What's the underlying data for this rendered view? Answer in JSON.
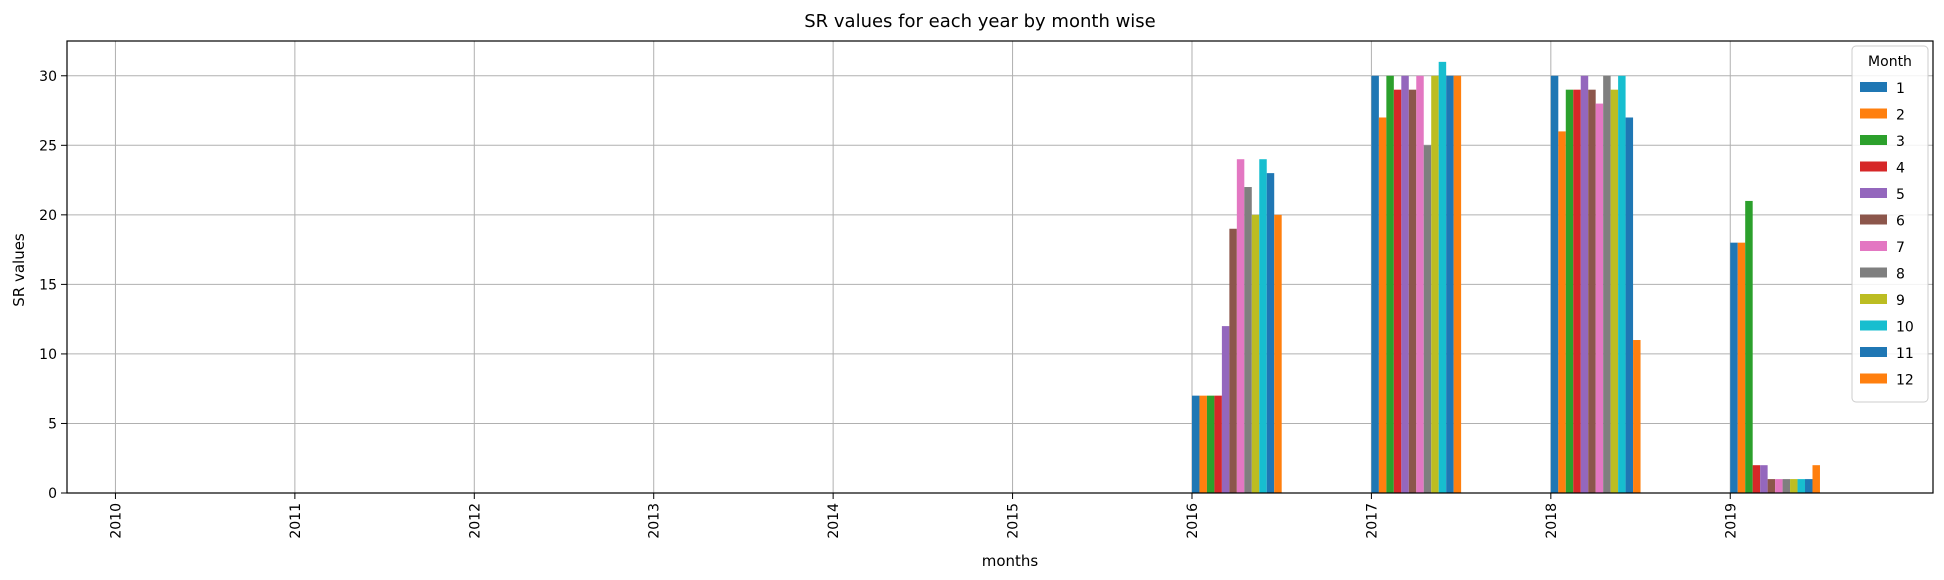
{
  "chart_data": {
    "type": "bar",
    "title": "SR values for each year by month wise",
    "xlabel": "months",
    "ylabel": "SR values",
    "categories": [
      "2010",
      "2011",
      "2012",
      "2013",
      "2014",
      "2015",
      "2016",
      "2017",
      "2018",
      "2019"
    ],
    "ylim": [
      0,
      32.5
    ],
    "yticks": [
      0,
      5,
      10,
      15,
      20,
      25,
      30
    ],
    "grid": true,
    "legend": {
      "title": "Month",
      "placement": "top-right"
    },
    "series": [
      {
        "name": "1",
        "color": "#1f77b4",
        "values": [
          0,
          0,
          0,
          0,
          0,
          0,
          7,
          30,
          30,
          18
        ]
      },
      {
        "name": "2",
        "color": "#ff7f0e",
        "values": [
          0,
          0,
          0,
          0,
          0,
          0,
          7,
          27,
          26,
          18
        ]
      },
      {
        "name": "3",
        "color": "#2ca02c",
        "values": [
          0,
          0,
          0,
          0,
          0,
          0,
          7,
          30,
          29,
          21
        ]
      },
      {
        "name": "4",
        "color": "#d62728",
        "values": [
          0,
          0,
          0,
          0,
          0,
          0,
          7,
          29,
          29,
          2
        ]
      },
      {
        "name": "5",
        "color": "#9467bd",
        "values": [
          0,
          0,
          0,
          0,
          0,
          0,
          12,
          30,
          30,
          2
        ]
      },
      {
        "name": "6",
        "color": "#8c564b",
        "values": [
          0,
          0,
          0,
          0,
          0,
          0,
          19,
          29,
          29,
          1
        ]
      },
      {
        "name": "7",
        "color": "#e377c2",
        "values": [
          0,
          0,
          0,
          0,
          0,
          0,
          24,
          30,
          28,
          1
        ]
      },
      {
        "name": "8",
        "color": "#7f7f7f",
        "values": [
          0,
          0,
          0,
          0,
          0,
          0,
          22,
          25,
          30,
          1
        ]
      },
      {
        "name": "9",
        "color": "#bcbd22",
        "values": [
          0,
          0,
          0,
          0,
          0,
          0,
          20,
          30,
          29,
          1
        ]
      },
      {
        "name": "10",
        "color": "#17becf",
        "values": [
          0,
          0,
          0,
          0,
          0,
          0,
          24,
          31,
          30,
          1
        ]
      },
      {
        "name": "11",
        "color": "#1f77b4",
        "values": [
          0,
          0,
          0,
          0,
          0,
          0,
          23,
          30,
          27,
          1
        ]
      },
      {
        "name": "12",
        "color": "#ff7f0e",
        "values": [
          0,
          0,
          0,
          0,
          0,
          0,
          20,
          30,
          11,
          2
        ]
      }
    ]
  }
}
